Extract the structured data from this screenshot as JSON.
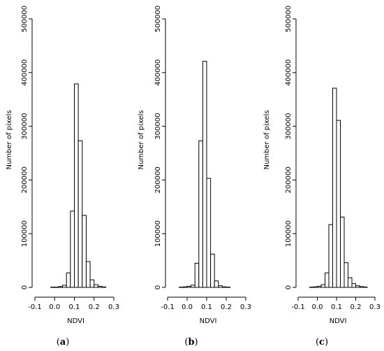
{
  "chart_data": [
    {
      "type": "bar",
      "panel_label": "a",
      "xlabel": "NDVI",
      "ylabel": "Number of pixels",
      "xlim": [
        -0.1,
        0.3
      ],
      "ylim": [
        0,
        500000
      ],
      "xticks": [
        "-0.1",
        "0.0",
        "0.1",
        "0.2",
        "0.3"
      ],
      "yticks": [
        "0",
        "100000",
        "200000",
        "300000",
        "400000",
        "500000"
      ],
      "bin_width": 0.02,
      "bin_edges_start": -0.02,
      "values": [
        500,
        500,
        1500,
        4000,
        27000,
        142000,
        379000,
        273000,
        134000,
        48000,
        14000,
        5000,
        2000,
        800
      ],
      "grid": false
    },
    {
      "type": "bar",
      "panel_label": "b",
      "xlabel": "NDVI",
      "ylabel": "Number of pixels",
      "xlim": [
        -0.1,
        0.3
      ],
      "ylim": [
        0,
        500000
      ],
      "xticks": [
        "-0.1",
        "0.0",
        "0.1",
        "0.2",
        "0.3"
      ],
      "yticks": [
        "0",
        "100000",
        "200000",
        "300000",
        "400000",
        "500000"
      ],
      "bin_width": 0.02,
      "bin_edges_start": -0.04,
      "values": [
        500,
        1000,
        2000,
        4000,
        45000,
        273000,
        421000,
        203000,
        62000,
        12000,
        3000,
        1000,
        500
      ],
      "grid": false
    },
    {
      "type": "bar",
      "panel_label": "c",
      "xlabel": "NDVI",
      "ylabel": "Number of pixels",
      "xlim": [
        -0.1,
        0.3
      ],
      "ylim": [
        0,
        500000
      ],
      "xticks": [
        "-0.1",
        "0.0",
        "0.1",
        "0.2",
        "0.3"
      ],
      "yticks": [
        "0",
        "100000",
        "200000",
        "300000",
        "400000",
        "500000"
      ],
      "bin_width": 0.02,
      "bin_edges_start": -0.04,
      "values": [
        500,
        1000,
        2000,
        5000,
        27000,
        117000,
        371000,
        311000,
        131000,
        46000,
        18000,
        7000,
        3000,
        1500,
        700
      ],
      "grid": false
    }
  ]
}
